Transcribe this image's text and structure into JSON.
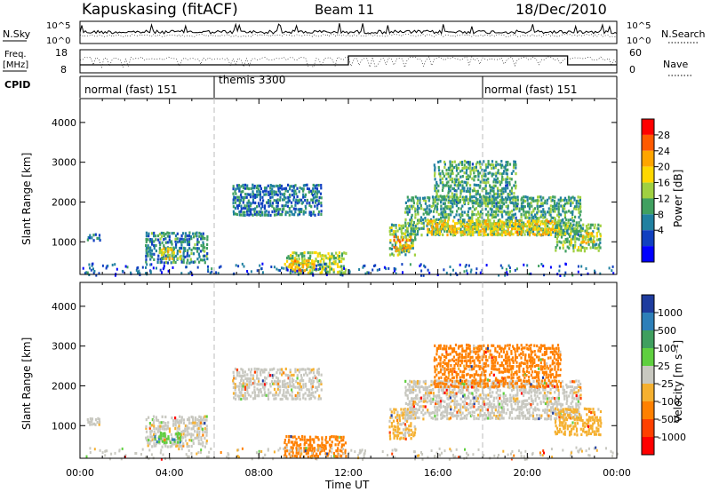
{
  "header": {
    "radar": "Kapuskasing (fitACF)",
    "beam": "Beam 11",
    "date": "18/Dec/2010"
  },
  "param_panel": {
    "nsky_label": "N.Sky",
    "nsky_ticks": [
      "10^5",
      "10^0"
    ],
    "nsearch_label": "N.Search",
    "freq_label": "Freq.",
    "freq_unit": "[MHz]",
    "freq_ticks": [
      "18",
      "8"
    ],
    "nave_label": "Nave",
    "nave_ticks": [
      "60",
      "0"
    ],
    "cpid_label": "CPID",
    "cpid_segments": [
      {
        "label": "normal (fast) 151",
        "start_h": 0,
        "end_h": 6
      },
      {
        "label": "themis 3300",
        "start_h": 6,
        "end_h": 18
      },
      {
        "label": "normal (fast) 151",
        "start_h": 18,
        "end_h": 24
      }
    ]
  },
  "colorbars": {
    "power": {
      "label": "Power [dB]",
      "ticks": [
        "28",
        "24",
        "20",
        "16",
        "12",
        "8",
        "4"
      ],
      "colors": [
        "#ff0000",
        "#ff5a00",
        "#ffa500",
        "#ffd700",
        "#a0d040",
        "#40a060",
        "#2080a0",
        "#1040c0",
        "#0000ff"
      ]
    },
    "velocity": {
      "label": "Velocity [m s⁻¹]",
      "ticks": [
        "1000",
        "500",
        "100",
        "25",
        "-25",
        "-100",
        "-500",
        "-1000"
      ],
      "colors": [
        "#1e3c9e",
        "#2d7fb8",
        "#3f9f5f",
        "#5fcf3f",
        "#c8c8c0",
        "#f5b030",
        "#ff8000",
        "#ff4000",
        "#ff0000"
      ]
    }
  },
  "chart_data": [
    {
      "type": "heatmap",
      "name": "power",
      "xlabel": "",
      "ylabel": "Slant Range [km]",
      "x_ticks": [
        "00:00",
        "04:00",
        "08:00",
        "12:00",
        "16:00",
        "20:00",
        "00:00"
      ],
      "y_ticks": [
        "1000",
        "2000",
        "3000",
        "4000"
      ],
      "xlim_hours": [
        0,
        24
      ],
      "ylim_km": [
        180,
        4600
      ],
      "colorbar_range_db": [
        0,
        32
      ],
      "regions": [
        {
          "t": [
            0.3,
            0.9
          ],
          "r": [
            1050,
            1250
          ],
          "level": 8
        },
        {
          "t": [
            2.9,
            5.7
          ],
          "r": [
            500,
            1300
          ],
          "level": 10
        },
        {
          "t": [
            3.5,
            4.5
          ],
          "r": [
            600,
            900
          ],
          "level": 18
        },
        {
          "t": [
            6.8,
            10.8
          ],
          "r": [
            1700,
            2500
          ],
          "level": 9
        },
        {
          "t": [
            9.1,
            11.9
          ],
          "r": [
            250,
            800
          ],
          "level": 16
        },
        {
          "t": [
            9.3,
            10.5
          ],
          "r": [
            300,
            600
          ],
          "level": 22
        },
        {
          "t": [
            13.8,
            15.0
          ],
          "r": [
            700,
            1500
          ],
          "level": 14
        },
        {
          "t": [
            14.0,
            14.8
          ],
          "r": [
            800,
            1200
          ],
          "level": 22
        },
        {
          "t": [
            14.5,
            22.4
          ],
          "r": [
            1200,
            2200
          ],
          "level": 12
        },
        {
          "t": [
            15.5,
            21.5
          ],
          "r": [
            1200,
            1600
          ],
          "level": 20
        },
        {
          "t": [
            15.8,
            19.5
          ],
          "r": [
            2000,
            3100
          ],
          "level": 12
        },
        {
          "t": [
            21.2,
            23.3
          ],
          "r": [
            800,
            1500
          ],
          "level": 14
        },
        {
          "t": [
            22.4,
            23.0
          ],
          "r": [
            1000,
            1300
          ],
          "level": 20
        }
      ]
    },
    {
      "type": "heatmap",
      "name": "velocity",
      "xlabel": "Time UT",
      "ylabel": "Slant Range [km]",
      "x_ticks": [
        "00:00",
        "04:00",
        "08:00",
        "12:00",
        "16:00",
        "20:00",
        "00:00"
      ],
      "y_ticks": [
        "1000",
        "2000",
        "3000",
        "4000"
      ],
      "xlim_hours": [
        0,
        24
      ],
      "ylim_km": [
        180,
        4600
      ],
      "colorbar_range_ms": [
        -1000,
        1000
      ],
      "regions": [
        {
          "t": [
            0.3,
            0.9
          ],
          "r": [
            1050,
            1250
          ],
          "vel": 0
        },
        {
          "t": [
            2.9,
            5.7
          ],
          "r": [
            500,
            1300
          ],
          "vel": 0
        },
        {
          "t": [
            3.3,
            4.5
          ],
          "r": [
            600,
            900
          ],
          "vel": 80
        },
        {
          "t": [
            6.8,
            10.8
          ],
          "r": [
            1700,
            2500
          ],
          "vel": 0
        },
        {
          "t": [
            9.1,
            11.9
          ],
          "r": [
            250,
            800
          ],
          "vel": -150
        },
        {
          "t": [
            13.8,
            15.0
          ],
          "r": [
            700,
            1500
          ],
          "vel": -40
        },
        {
          "t": [
            14.5,
            22.4
          ],
          "r": [
            1200,
            2200
          ],
          "vel": 0
        },
        {
          "t": [
            15.8,
            21.5
          ],
          "r": [
            2000,
            3100
          ],
          "vel": -200
        },
        {
          "t": [
            21.2,
            23.3
          ],
          "r": [
            800,
            1500
          ],
          "vel": -60
        }
      ]
    }
  ]
}
